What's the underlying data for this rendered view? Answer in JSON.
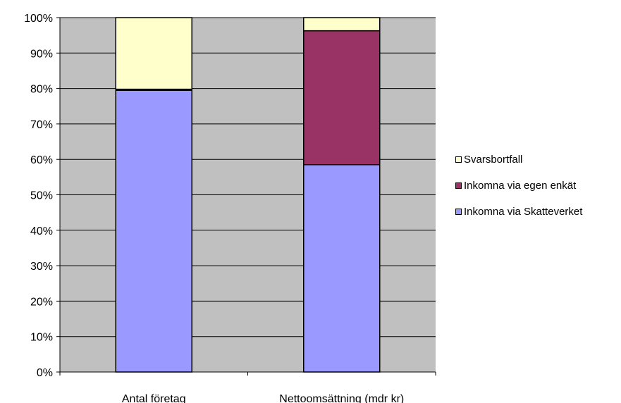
{
  "chart_data": {
    "type": "bar",
    "stacked": true,
    "percent": true,
    "categories": [
      "Antal företag",
      "Nettoomsättning (mdr kr)"
    ],
    "series": [
      {
        "name": "Inkomna via Skatteverket",
        "color": "#9999ff",
        "values": [
          79.5,
          58.5
        ]
      },
      {
        "name": "Inkomna via egen enkät",
        "color": "#993366",
        "values": [
          0.3,
          37.8
        ]
      },
      {
        "name": "Svarsbortfall",
        "color": "#ffffcc",
        "values": [
          20.2,
          3.7
        ]
      }
    ],
    "ylim": [
      0,
      100
    ],
    "yticks": [
      "0%",
      "10%",
      "20%",
      "30%",
      "40%",
      "50%",
      "60%",
      "70%",
      "80%",
      "90%",
      "100%"
    ],
    "plot_background": "#c0c0c0",
    "grid": true,
    "legend_position": "right",
    "legend_order": [
      "Svarsbortfall",
      "Inkomna via egen enkät",
      "Inkomna via Skatteverket"
    ]
  }
}
